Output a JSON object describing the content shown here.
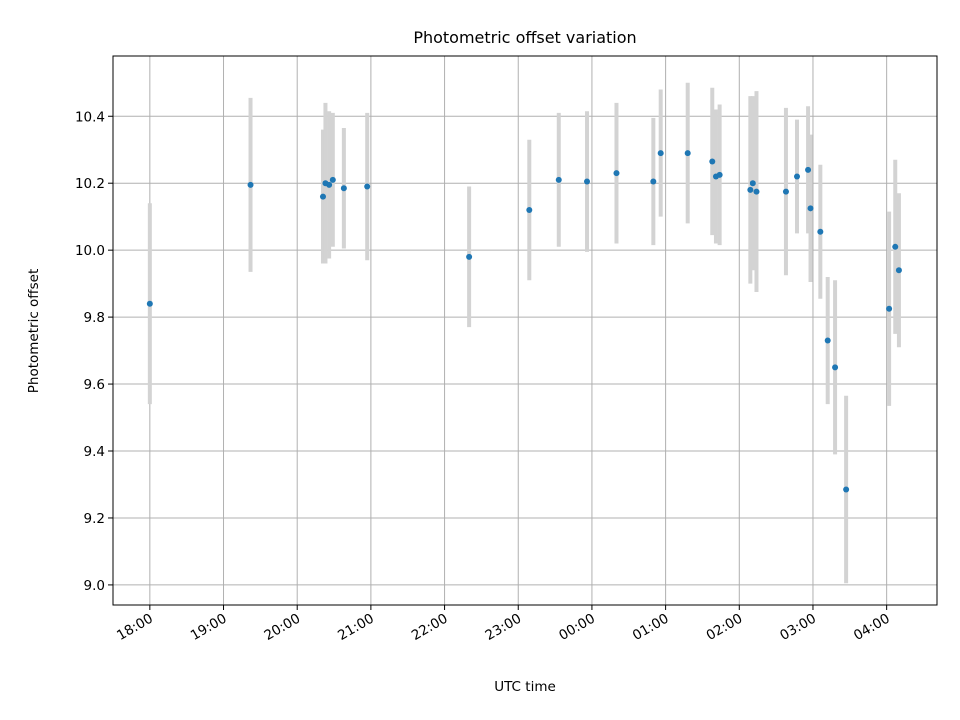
{
  "chart_data": {
    "type": "scatter",
    "title": "Photometric offset variation",
    "xlabel": "UTC time",
    "ylabel": "Photometric offset",
    "x_tick_labels": [
      "18:00",
      "19:00",
      "20:00",
      "21:00",
      "22:00",
      "23:00",
      "00:00",
      "01:00",
      "02:00",
      "03:00",
      "04:00"
    ],
    "y_tick_labels": [
      "9.0",
      "9.2",
      "9.4",
      "9.6",
      "9.8",
      "10.0",
      "10.2",
      "10.4"
    ],
    "xlim": [
      "17:30",
      "04:41"
    ],
    "ylim": [
      8.94,
      10.58
    ],
    "grid": true,
    "marker_color": "#1f77b4",
    "errorbar_color": "#d3d3d3",
    "points": [
      {
        "t": "18:00",
        "y": 9.84,
        "err": 0.3
      },
      {
        "t": "19:22",
        "y": 10.195,
        "err": 0.26
      },
      {
        "t": "20:21",
        "y": 10.16,
        "err": 0.2
      },
      {
        "t": "20:23",
        "y": 10.2,
        "err": 0.24
      },
      {
        "t": "20:26",
        "y": 10.195,
        "err": 0.22
      },
      {
        "t": "20:29",
        "y": 10.21,
        "err": 0.2
      },
      {
        "t": "20:38",
        "y": 10.185,
        "err": 0.18
      },
      {
        "t": "20:57",
        "y": 10.19,
        "err": 0.22
      },
      {
        "t": "22:20",
        "y": 9.98,
        "err": 0.21
      },
      {
        "t": "23:09",
        "y": 10.12,
        "err": 0.21
      },
      {
        "t": "23:33",
        "y": 10.21,
        "err": 0.2
      },
      {
        "t": "23:56",
        "y": 10.205,
        "err": 0.21
      },
      {
        "t": "00:20",
        "y": 10.23,
        "err": 0.21
      },
      {
        "t": "00:50",
        "y": 10.205,
        "err": 0.19
      },
      {
        "t": "00:56",
        "y": 10.29,
        "err": 0.19
      },
      {
        "t": "01:18",
        "y": 10.29,
        "err": 0.21
      },
      {
        "t": "01:38",
        "y": 10.265,
        "err": 0.22
      },
      {
        "t": "01:41",
        "y": 10.22,
        "err": 0.2
      },
      {
        "t": "01:44",
        "y": 10.225,
        "err": 0.21
      },
      {
        "t": "02:09",
        "y": 10.18,
        "err": 0.28
      },
      {
        "t": "02:11",
        "y": 10.2,
        "err": 0.26
      },
      {
        "t": "02:14",
        "y": 10.175,
        "err": 0.3
      },
      {
        "t": "02:38",
        "y": 10.175,
        "err": 0.25
      },
      {
        "t": "02:47",
        "y": 10.22,
        "err": 0.17
      },
      {
        "t": "02:56",
        "y": 10.24,
        "err": 0.19
      },
      {
        "t": "02:58",
        "y": 10.125,
        "err": 0.22
      },
      {
        "t": "03:06",
        "y": 10.055,
        "err": 0.2
      },
      {
        "t": "03:12",
        "y": 9.73,
        "err": 0.19
      },
      {
        "t": "03:18",
        "y": 9.65,
        "err": 0.26
      },
      {
        "t": "03:27",
        "y": 9.285,
        "err": 0.28
      },
      {
        "t": "04:02",
        "y": 9.825,
        "err": 0.29
      },
      {
        "t": "04:07",
        "y": 10.01,
        "err": 0.26
      },
      {
        "t": "04:10",
        "y": 9.94,
        "err": 0.23
      }
    ]
  }
}
